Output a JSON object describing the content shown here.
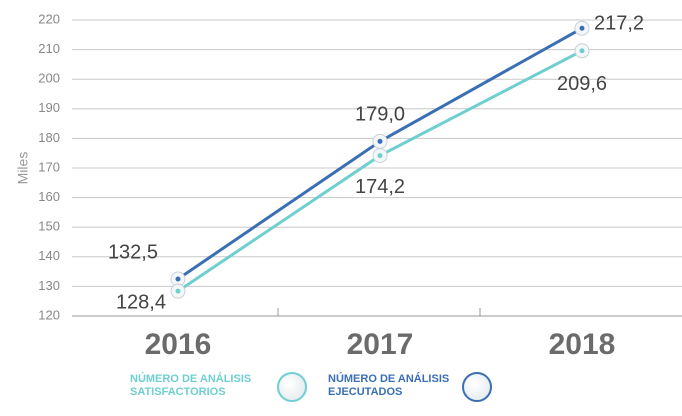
{
  "chart_data": {
    "type": "line",
    "y_label": "Miles",
    "categories": [
      "2016",
      "2017",
      "2018"
    ],
    "series": [
      {
        "name": "NÚMERO DE ANÁLISIS EJECUTADOS",
        "color": "#3a6fb5",
        "values": [
          132.5,
          179.0,
          217.2
        ],
        "value_labels": [
          "132,5",
          "179,0",
          "217,2"
        ]
      },
      {
        "name": "NÚMERO DE ANÁLISIS SATISFACTORIOS",
        "color": "#6fcfd0",
        "values": [
          128.4,
          174.2,
          209.6
        ],
        "value_labels": [
          "128,4",
          "174,2",
          "209,6"
        ]
      }
    ],
    "ylim": [
      120,
      220
    ],
    "yticks": [
      120,
      130,
      140,
      150,
      160,
      170,
      180,
      190,
      200,
      210,
      220
    ],
    "grid": true
  }
}
